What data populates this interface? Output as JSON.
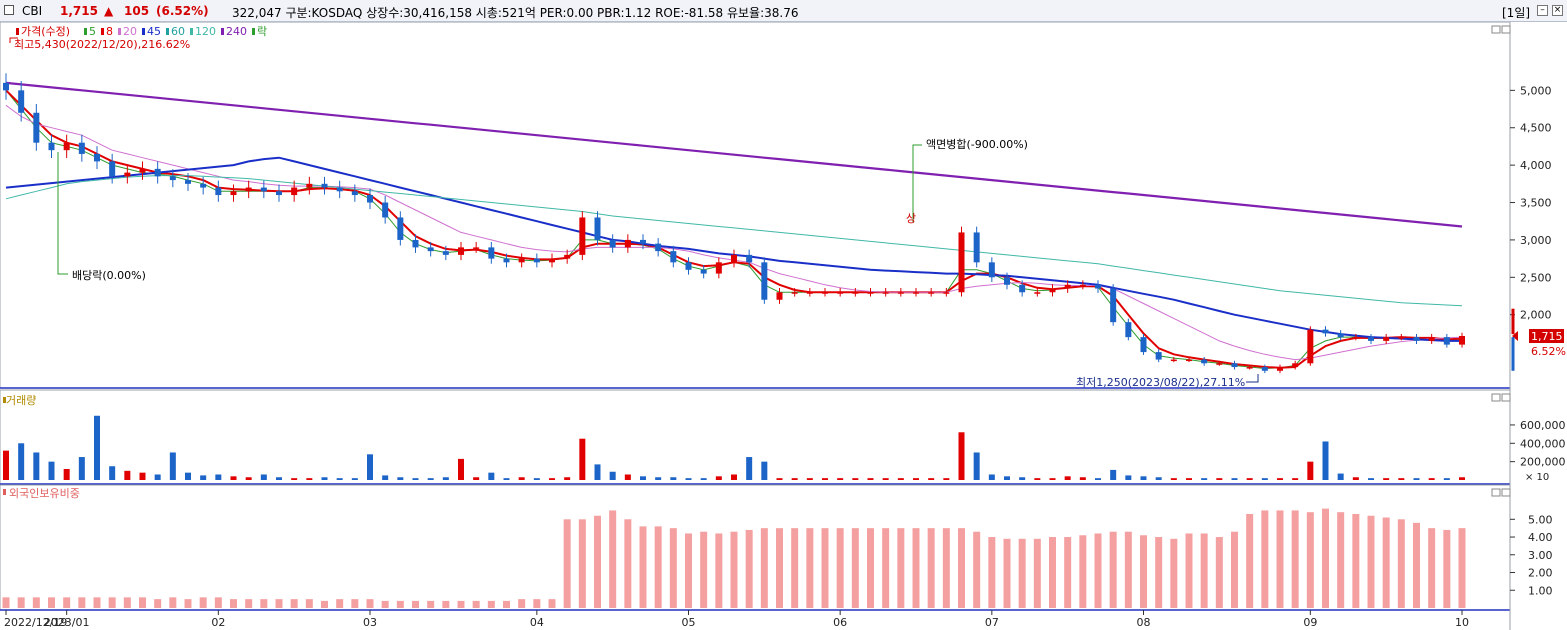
{
  "header": {
    "symbol": "CBI",
    "price": "1,715",
    "arrow": "▲",
    "change": "105",
    "change_pct": "(6.52%)",
    "info": "322,047  구분:KOSDAQ 상장수:30,416,158 시총:521억 PER:0.00 PBR:1.12 ROE:-81.58 유보율:38.76",
    "period": "[1일]"
  },
  "legend": {
    "items": [
      {
        "label": "가격(수정)",
        "color": "#d40000"
      },
      {
        "label": "5",
        "color": "#2e9c2e"
      },
      {
        "label": "8",
        "color": "#e00000"
      },
      {
        "label": "20",
        "color": "#d070d0"
      },
      {
        "label": "45",
        "color": "#1a2fc8"
      },
      {
        "label": "60",
        "color": "#20a0a0"
      },
      {
        "label": "120",
        "color": "#40b8a8"
      },
      {
        "label": "240",
        "color": "#8020b0"
      },
      {
        "label": "락",
        "color": "#2e9c2e"
      }
    ]
  },
  "annotations": {
    "high": "최고5,430(2022/12/20),216.62%",
    "low": "최저1,250(2023/08/22),27.11%",
    "dividend": "배당락(0.00%)",
    "reverse_split": "액면병합(-900.00%)",
    "split_marker": "상",
    "last_price": "1,715",
    "last_pct": "6.52%"
  },
  "panels": {
    "volume_title": "거래량",
    "foreign_title": "외국인보유비중",
    "volume_multiplier": "× 10"
  },
  "colors": {
    "up": "#e00000",
    "down": "#1c64c8",
    "foreign": "#f4a0a0"
  },
  "chart_data": [
    {
      "type": "candlestick",
      "y_ticks": [
        "5,000",
        "4,500",
        "4,000",
        "3,500",
        "3,000",
        "2,500",
        "2,000"
      ],
      "ylim": [
        1100,
        5700
      ],
      "x_labels": [
        "2022/12/19",
        "2023/01",
        "02",
        "03",
        "04",
        "05",
        "06",
        "07",
        "08",
        "09",
        "10"
      ],
      "series": [
        {
          "name": "가격(수정)",
          "values": [
            5000,
            4700,
            4300,
            4200,
            4300,
            4150,
            4050,
            3850,
            3900,
            3950,
            3850,
            3800,
            3750,
            3700,
            3600,
            3650,
            3700,
            3650,
            3600,
            3700,
            3750,
            3700,
            3650,
            3600,
            3500,
            3300,
            3000,
            2900,
            2850,
            2800,
            2900,
            2900,
            2750,
            2700,
            2750,
            2700,
            2750,
            2800,
            3300,
            3000,
            2900,
            3000,
            2950,
            2850,
            2700,
            2600,
            2550,
            2700,
            2800,
            2700,
            2200,
            2300,
            2300,
            2300,
            2300,
            2300,
            2300,
            2300,
            2300,
            2300,
            2300,
            2300,
            2300,
            3100,
            2700,
            2500,
            2400,
            2300,
            2300,
            2350,
            2400,
            2400,
            2350,
            1900,
            1700,
            1500,
            1400,
            1400,
            1400,
            1350,
            1350,
            1300,
            1300,
            1250,
            1300,
            1350,
            1800,
            1750,
            1700,
            1700,
            1650,
            1700,
            1700,
            1650,
            1700,
            1600,
            1715
          ]
        },
        {
          "name": "5",
          "values": [
            5000,
            4750,
            4500,
            4300,
            4250,
            4200,
            4100,
            4000,
            3950,
            3900,
            3880,
            3850,
            3800,
            3750,
            3650,
            3650,
            3650,
            3650,
            3650,
            3650,
            3700,
            3700,
            3680,
            3650,
            3550,
            3350,
            3100,
            2950,
            2870,
            2830,
            2850,
            2870,
            2800,
            2750,
            2730,
            2720,
            2730,
            2760,
            3000,
            3000,
            2950,
            2950,
            2930,
            2880,
            2750,
            2650,
            2600,
            2650,
            2700,
            2650,
            2400,
            2300,
            2300,
            2300,
            2300,
            2300,
            2300,
            2300,
            2300,
            2300,
            2300,
            2300,
            2300,
            2600,
            2600,
            2550,
            2450,
            2350,
            2320,
            2330,
            2370,
            2380,
            2370,
            2100,
            1850,
            1600,
            1450,
            1420,
            1400,
            1370,
            1350,
            1320,
            1300,
            1280,
            1290,
            1320,
            1550,
            1650,
            1700,
            1700,
            1680,
            1690,
            1700,
            1680,
            1680,
            1650,
            1680
          ]
        },
        {
          "name": "8",
          "values": [
            5000,
            4800,
            4600,
            4400,
            4300,
            4250,
            4150,
            4050,
            4000,
            3950,
            3900,
            3880,
            3850,
            3800,
            3700,
            3680,
            3670,
            3660,
            3650,
            3650,
            3680,
            3690,
            3680,
            3660,
            3600,
            3450,
            3250,
            3050,
            2950,
            2880,
            2860,
            2870,
            2840,
            2790,
            2760,
            2740,
            2740,
            2760,
            2900,
            2950,
            2950,
            2950,
            2940,
            2900,
            2800,
            2700,
            2650,
            2660,
            2700,
            2680,
            2500,
            2400,
            2330,
            2300,
            2300,
            2300,
            2300,
            2300,
            2300,
            2300,
            2300,
            2300,
            2300,
            2450,
            2550,
            2550,
            2500,
            2420,
            2360,
            2340,
            2360,
            2380,
            2380,
            2250,
            2000,
            1750,
            1550,
            1470,
            1430,
            1400,
            1370,
            1340,
            1320,
            1300,
            1290,
            1300,
            1450,
            1580,
            1650,
            1690,
            1690,
            1690,
            1700,
            1690,
            1690,
            1670,
            1680
          ]
        },
        {
          "name": "20",
          "values": [
            4800,
            4650,
            4550,
            4500,
            4450,
            4400,
            4300,
            4200,
            4150,
            4100,
            4050,
            4000,
            3950,
            3900,
            3850,
            3800,
            3780,
            3750,
            3730,
            3720,
            3720,
            3720,
            3710,
            3700,
            3680,
            3600,
            3500,
            3400,
            3300,
            3200,
            3100,
            3050,
            3000,
            2950,
            2900,
            2870,
            2850,
            2840,
            2880,
            2900,
            2900,
            2900,
            2900,
            2900,
            2880,
            2850,
            2800,
            2760,
            2730,
            2700,
            2620,
            2550,
            2500,
            2450,
            2400,
            2360,
            2330,
            2310,
            2300,
            2300,
            2300,
            2300,
            2300,
            2350,
            2380,
            2400,
            2420,
            2430,
            2420,
            2400,
            2390,
            2390,
            2390,
            2350,
            2250,
            2150,
            2050,
            1950,
            1850,
            1750,
            1650,
            1580,
            1520,
            1470,
            1430,
            1400,
            1420,
            1460,
            1500,
            1540,
            1580,
            1610,
            1640,
            1660,
            1680,
            1690,
            1700
          ]
        },
        {
          "name": "45",
          "values": [
            3700,
            3720,
            3740,
            3760,
            3780,
            3800,
            3820,
            3840,
            3860,
            3880,
            3900,
            3920,
            3940,
            3960,
            3980,
            4000,
            4050,
            4080,
            4100,
            4050,
            4000,
            3950,
            3900,
            3850,
            3800,
            3750,
            3700,
            3650,
            3600,
            3550,
            3500,
            3450,
            3400,
            3350,
            3300,
            3250,
            3200,
            3150,
            3100,
            3050,
            3000,
            2980,
            2950,
            2920,
            2900,
            2880,
            2850,
            2820,
            2800,
            2780,
            2750,
            2720,
            2700,
            2680,
            2660,
            2640,
            2620,
            2600,
            2590,
            2580,
            2570,
            2560,
            2550,
            2550,
            2540,
            2530,
            2520,
            2500,
            2480,
            2460,
            2440,
            2420,
            2400,
            2360,
            2320,
            2280,
            2240,
            2200,
            2150,
            2100,
            2050,
            2000,
            1960,
            1920,
            1880,
            1840,
            1800,
            1770,
            1740,
            1720,
            1700,
            1690,
            1680,
            1670,
            1660,
            1650,
            1650
          ]
        },
        {
          "name": "120",
          "values": [
            3550,
            3600,
            3650,
            3700,
            3750,
            3780,
            3800,
            3820,
            3840,
            3850,
            3860,
            3860,
            3860,
            3850,
            3840,
            3830,
            3820,
            3800,
            3780,
            3760,
            3740,
            3720,
            3700,
            3680,
            3660,
            3640,
            3620,
            3600,
            3580,
            3560,
            3540,
            3520,
            3500,
            3480,
            3460,
            3440,
            3420,
            3400,
            3380,
            3350,
            3320,
            3300,
            3280,
            3260,
            3240,
            3220,
            3200,
            3180,
            3160,
            3140,
            3120,
            3100,
            3080,
            3060,
            3040,
            3020,
            3000,
            2980,
            2960,
            2940,
            2920,
            2900,
            2880,
            2860,
            2840,
            2820,
            2800,
            2780,
            2760,
            2740,
            2720,
            2700,
            2680,
            2650,
            2620,
            2590,
            2560,
            2530,
            2500,
            2470,
            2440,
            2410,
            2380,
            2350,
            2320,
            2300,
            2280,
            2260,
            2240,
            2220,
            2200,
            2180,
            2160,
            2150,
            2140,
            2130,
            2120
          ]
        },
        {
          "name": "240",
          "values": [
            5100,
            5080,
            5060,
            5040,
            5020,
            5000,
            4980,
            4960,
            4940,
            4920,
            4900,
            4880,
            4860,
            4840,
            4820,
            4800,
            4780,
            4760,
            4740,
            4720,
            4700,
            4680,
            4660,
            4640,
            4620,
            4600,
            4580,
            4560,
            4540,
            4520,
            4500,
            4480,
            4460,
            4440,
            4420,
            4400,
            4380,
            4360,
            4340,
            4320,
            4300,
            4280,
            4260,
            4240,
            4220,
            4200,
            4180,
            4160,
            4140,
            4120,
            4100,
            4080,
            4060,
            4040,
            4020,
            4000,
            3980,
            3960,
            3940,
            3920,
            3900,
            3880,
            3860,
            3840,
            3820,
            3800,
            3780,
            3760,
            3740,
            3720,
            3700,
            3680,
            3660,
            3640,
            3620,
            3600,
            3580,
            3560,
            3540,
            3520,
            3500,
            3480,
            3460,
            3440,
            3420,
            3400,
            3380,
            3360,
            3340,
            3320,
            3300,
            3280,
            3260,
            3240,
            3220,
            3200,
            3180
          ]
        }
      ]
    },
    {
      "type": "bar",
      "title": "거래량",
      "y_ticks": [
        "600,000",
        "400,000",
        "200,000"
      ],
      "ylim": [
        0,
        850000
      ],
      "values": [
        320000,
        400000,
        300000,
        200000,
        120000,
        250000,
        700000,
        150000,
        100000,
        80000,
        60000,
        300000,
        80000,
        50000,
        60000,
        40000,
        30000,
        60000,
        30000,
        20000,
        20000,
        30000,
        20000,
        20000,
        280000,
        50000,
        30000,
        20000,
        20000,
        30000,
        230000,
        30000,
        80000,
        20000,
        30000,
        20000,
        20000,
        30000,
        450000,
        170000,
        90000,
        60000,
        40000,
        30000,
        30000,
        20000,
        20000,
        40000,
        60000,
        250000,
        200000,
        20000,
        20000,
        20000,
        20000,
        20000,
        20000,
        20000,
        20000,
        20000,
        20000,
        20000,
        20000,
        520000,
        300000,
        60000,
        40000,
        30000,
        20000,
        20000,
        40000,
        30000,
        20000,
        110000,
        50000,
        40000,
        30000,
        20000,
        20000,
        20000,
        20000,
        20000,
        20000,
        20000,
        20000,
        20000,
        200000,
        420000,
        70000,
        30000,
        20000,
        20000,
        20000,
        20000,
        20000,
        20000,
        30000
      ]
    },
    {
      "type": "bar",
      "title": "외국인보유비중",
      "y_ticks": [
        "5.00",
        "4.00",
        "3.00",
        "2.00",
        "1.00"
      ],
      "ylim": [
        0,
        6.2
      ],
      "values": [
        0.6,
        0.6,
        0.6,
        0.6,
        0.6,
        0.6,
        0.6,
        0.6,
        0.6,
        0.6,
        0.5,
        0.6,
        0.5,
        0.6,
        0.6,
        0.5,
        0.5,
        0.5,
        0.5,
        0.5,
        0.5,
        0.4,
        0.5,
        0.5,
        0.5,
        0.4,
        0.4,
        0.4,
        0.4,
        0.4,
        0.4,
        0.4,
        0.4,
        0.4,
        0.5,
        0.5,
        0.5,
        5.0,
        5.0,
        5.2,
        5.5,
        5.0,
        4.6,
        4.6,
        4.5,
        4.2,
        4.3,
        4.2,
        4.3,
        4.4,
        4.5,
        4.5,
        4.5,
        4.5,
        4.5,
        4.5,
        4.5,
        4.5,
        4.5,
        4.5,
        4.5,
        4.5,
        4.5,
        4.5,
        4.3,
        4.0,
        3.9,
        3.9,
        3.9,
        4.0,
        4.0,
        4.1,
        4.2,
        4.3,
        4.3,
        4.1,
        4.0,
        3.9,
        4.2,
        4.2,
        4.0,
        4.3,
        5.3,
        5.5,
        5.5,
        5.5,
        5.4,
        5.6,
        5.4,
        5.3,
        5.2,
        5.1,
        5.0,
        4.8,
        4.5,
        4.4,
        4.5
      ]
    }
  ]
}
